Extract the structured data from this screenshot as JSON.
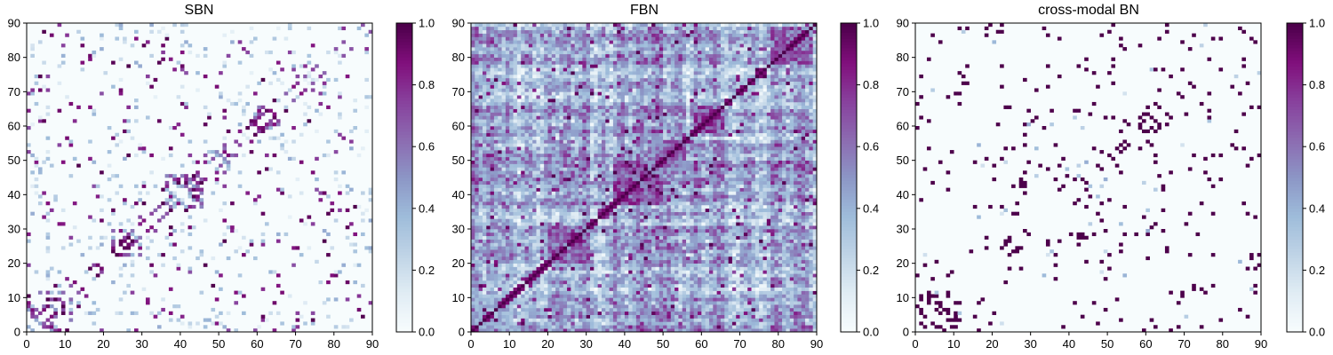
{
  "chart_data": [
    {
      "type": "heatmap",
      "title": "SBN",
      "xlim": [
        0,
        90
      ],
      "ylim": [
        0,
        90
      ],
      "xticks": [
        "0",
        "10",
        "20",
        "30",
        "40",
        "50",
        "60",
        "70",
        "80",
        "90"
      ],
      "yticks": [
        "0",
        "10",
        "20",
        "30",
        "40",
        "50",
        "60",
        "70",
        "80",
        "90"
      ],
      "colorbar": {
        "range": [
          0,
          1
        ],
        "ticks": [
          "0.0",
          "0.2",
          "0.4",
          "0.6",
          "0.8",
          "1.0"
        ]
      },
      "colormap": "BuPu",
      "matrix_size": 90,
      "pattern": "sparse symmetric structural connectivity (mostly near 0, scattered strong links, near-diagonal blocks)"
    },
    {
      "type": "heatmap",
      "title": "FBN",
      "xlim": [
        0,
        90
      ],
      "ylim": [
        0,
        90
      ],
      "xticks": [
        "0",
        "10",
        "20",
        "30",
        "40",
        "50",
        "60",
        "70",
        "80",
        "90"
      ],
      "yticks": [
        "0",
        "10",
        "20",
        "30",
        "40",
        "50",
        "60",
        "70",
        "80",
        "90"
      ],
      "colorbar": {
        "range": [
          0,
          1
        ],
        "ticks": [
          "0.0",
          "0.2",
          "0.4",
          "0.6",
          "0.8",
          "1.0"
        ]
      },
      "colormap": "BuPu",
      "matrix_size": 90,
      "pattern": "dense symmetric functional connectivity (strong diagonal = 1.0, blocks near 20-30, 38-50, 58-65, 78-88)"
    },
    {
      "type": "heatmap",
      "title": "cross-modal BN",
      "xlim": [
        0,
        90
      ],
      "ylim": [
        0,
        90
      ],
      "xticks": [
        "0",
        "10",
        "20",
        "30",
        "40",
        "50",
        "60",
        "70",
        "80",
        "90"
      ],
      "yticks": [
        "0",
        "10",
        "20",
        "30",
        "40",
        "50",
        "60",
        "70",
        "80",
        "90"
      ],
      "colorbar": {
        "range": [
          0,
          1
        ],
        "ticks": [
          "0.0",
          "0.2",
          "0.4",
          "0.6",
          "0.8",
          "1.0"
        ]
      },
      "colormap": "BuPu",
      "matrix_size": 90,
      "pattern": "sparse symmetric binary-like network (mostly 0, scattered 1.0 links)"
    }
  ],
  "colors": {
    "colormap_stops": [
      "#f7fcfd",
      "#e0ecf4",
      "#bfd3e6",
      "#9ebcda",
      "#8c96c6",
      "#8c6bb1",
      "#88419d",
      "#810f7c",
      "#4d004b"
    ]
  }
}
